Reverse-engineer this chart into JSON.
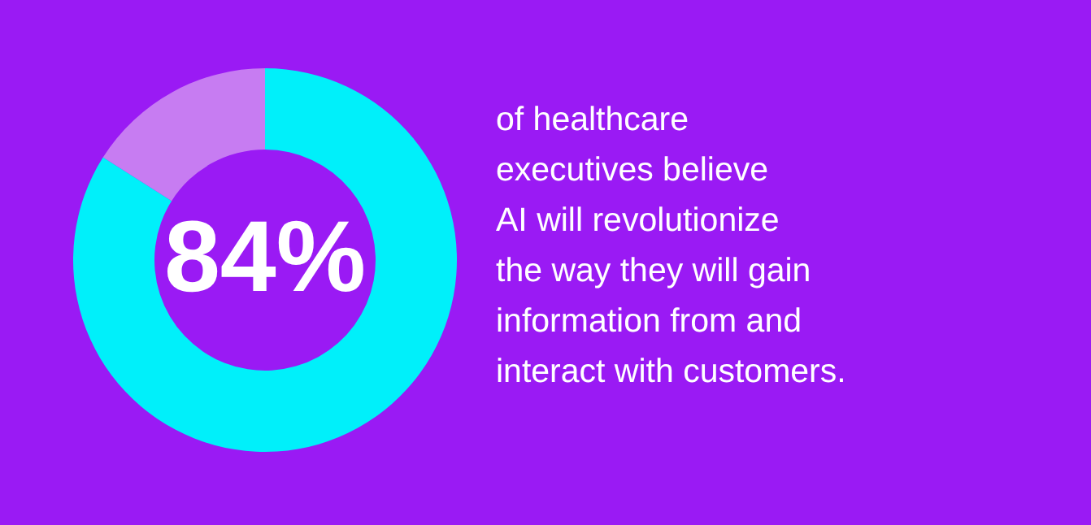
{
  "chart_data": {
    "type": "donut",
    "categories": [
      null,
      null
    ],
    "values": [
      84,
      16
    ],
    "colors": [
      "#00f0fa",
      "#c77cf2"
    ],
    "value_labels": [
      "84%",
      null
    ],
    "annotations": [
      "of healthcare\nexecutives believe\nAI will revolutionize\nthe way they will gain\ninformation from and\ninteract with customers."
    ]
  }
}
